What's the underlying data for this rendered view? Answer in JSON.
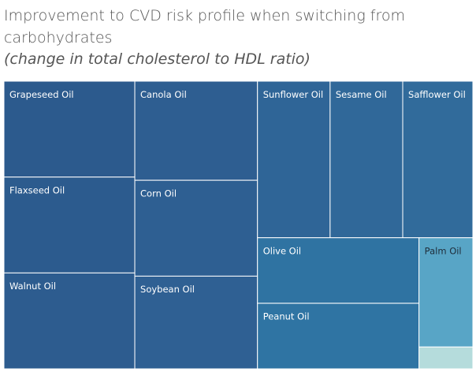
{
  "chart_data": {
    "type": "treemap",
    "title": "Improvement to CVD risk profile when switching from carbohydrates",
    "subtitle": "(change in total cholesterol to HDL ratio)",
    "categories": [
      "Grapeseed Oil",
      "Flaxseed Oil",
      "Walnut Oil",
      "Canola Oil",
      "Corn Oil",
      "Soybean Oil",
      "Sunflower Oil",
      "Sesame Oil",
      "Safflower Oil",
      "Olive Oil",
      "Peanut Oil",
      "Palm Oil",
      null
    ],
    "values": [
      0.32,
      0.32,
      0.32,
      0.31,
      0.3,
      0.29,
      0.29,
      0.29,
      0.28,
      0.27,
      0.27,
      0.15,
      0.03
    ],
    "colors": [
      "#2c5a8d",
      "#2c5b8e",
      "#2d5c8f",
      "#2e5e91",
      "#2e5f92",
      "#2f6093",
      "#2f6597",
      "#306899",
      "#316b9b",
      "#2f73a2",
      "#2f74a3",
      "#58a5c6",
      "#b5dcdc"
    ]
  }
}
